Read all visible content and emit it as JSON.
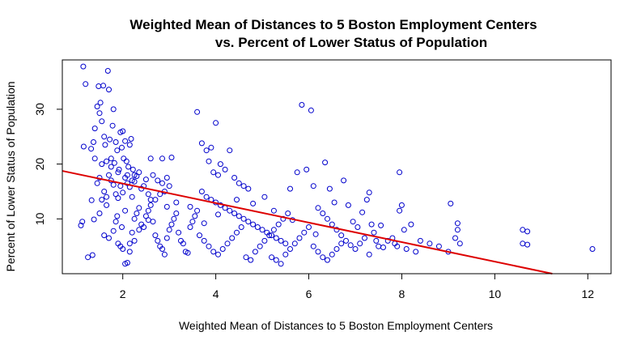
{
  "chart_data": {
    "type": "scatter",
    "title_line1": "Weighted Mean of Distances to 5 Boston Employment Centers",
    "title_line2": "vs. Percent of Lower Status of Population",
    "xlabel": "Weighted Mean of Distances to 5 Boston Employment Centers",
    "ylabel": "Percent of Lower Status of Population",
    "xlim": [
      0.7,
      12.5
    ],
    "ylim": [
      0.0,
      39.0
    ],
    "xticks": [
      2,
      4,
      6,
      8,
      10,
      12
    ],
    "yticks": [
      10,
      20,
      30
    ],
    "grid": false,
    "point_color": "#0000cc",
    "line_color": "#dd0000",
    "regression_line": {
      "intercept": 20.0,
      "slope": -1.78,
      "x_from": 0.7,
      "x_to": 12.5
    },
    "series": [
      {
        "points": [
          [
            1.15,
            37.8
          ],
          [
            1.2,
            34.6
          ],
          [
            1.16,
            23.2
          ],
          [
            1.13,
            9.5
          ],
          [
            1.1,
            8.8
          ],
          [
            1.25,
            3.0
          ],
          [
            1.35,
            3.4
          ],
          [
            1.38,
            9.9
          ],
          [
            1.33,
            13.4
          ],
          [
            1.32,
            22.8
          ],
          [
            1.37,
            24.0
          ],
          [
            1.4,
            26.5
          ],
          [
            1.45,
            30.5
          ],
          [
            1.48,
            34.2
          ],
          [
            1.5,
            29.3
          ],
          [
            1.52,
            31.2
          ],
          [
            1.55,
            27.8
          ],
          [
            1.58,
            34.3
          ],
          [
            1.6,
            25.0
          ],
          [
            1.62,
            23.5
          ],
          [
            1.65,
            20.5
          ],
          [
            1.68,
            37.0
          ],
          [
            1.7,
            33.6
          ],
          [
            1.72,
            24.5
          ],
          [
            1.75,
            21.0
          ],
          [
            1.78,
            27.0
          ],
          [
            1.8,
            30.0
          ],
          [
            1.82,
            20.2
          ],
          [
            1.85,
            24.0
          ],
          [
            1.88,
            22.5
          ],
          [
            1.9,
            18.5
          ],
          [
            1.92,
            19.0
          ],
          [
            1.95,
            25.8
          ],
          [
            1.98,
            23.0
          ],
          [
            2.0,
            26.0
          ],
          [
            2.02,
            21.0
          ],
          [
            2.05,
            24.2
          ],
          [
            2.08,
            20.5
          ],
          [
            2.1,
            18.0
          ],
          [
            2.12,
            19.5
          ],
          [
            2.15,
            23.5
          ],
          [
            2.18,
            24.6
          ],
          [
            2.2,
            17.0
          ],
          [
            2.22,
            19.0
          ],
          [
            2.25,
            18.0
          ],
          [
            1.45,
            16.5
          ],
          [
            1.5,
            17.5
          ],
          [
            1.55,
            13.5
          ],
          [
            1.6,
            15.0
          ],
          [
            1.65,
            14.0
          ],
          [
            1.7,
            18.0
          ],
          [
            1.75,
            17.0
          ],
          [
            1.8,
            16.2
          ],
          [
            1.85,
            14.5
          ],
          [
            1.9,
            13.8
          ],
          [
            1.95,
            16.0
          ],
          [
            2.0,
            14.8
          ],
          [
            2.05,
            17.5
          ],
          [
            2.1,
            16.5
          ],
          [
            2.15,
            15.8
          ],
          [
            2.2,
            14.0
          ],
          [
            2.25,
            16.8
          ],
          [
            2.3,
            17.8
          ],
          [
            2.35,
            18.5
          ],
          [
            2.4,
            15.5
          ],
          [
            2.45,
            16.0
          ],
          [
            2.5,
            17.2
          ],
          [
            2.55,
            14.5
          ],
          [
            2.6,
            13.5
          ],
          [
            1.4,
            21.0
          ],
          [
            1.55,
            20.0
          ],
          [
            1.75,
            19.5
          ],
          [
            1.65,
            12.5
          ],
          [
            1.5,
            11.0
          ],
          [
            1.85,
            9.5
          ],
          [
            1.6,
            7.0
          ],
          [
            1.7,
            6.5
          ],
          [
            1.8,
            7.8
          ],
          [
            1.9,
            5.5
          ],
          [
            1.95,
            5.0
          ],
          [
            2.0,
            4.5
          ],
          [
            2.05,
            1.8
          ],
          [
            2.1,
            2.0
          ],
          [
            2.15,
            4.0
          ],
          [
            2.2,
            7.5
          ],
          [
            2.25,
            10.0
          ],
          [
            2.3,
            11.0
          ],
          [
            2.35,
            12.0
          ],
          [
            2.4,
            9.0
          ],
          [
            2.45,
            8.5
          ],
          [
            2.5,
            10.5
          ],
          [
            2.55,
            11.5
          ],
          [
            2.6,
            12.5
          ],
          [
            2.65,
            9.5
          ],
          [
            2.7,
            7.0
          ],
          [
            2.75,
            6.0
          ],
          [
            2.8,
            5.0
          ],
          [
            2.85,
            4.5
          ],
          [
            2.9,
            3.5
          ],
          [
            2.95,
            6.5
          ],
          [
            3.0,
            8.0
          ],
          [
            3.05,
            9.0
          ],
          [
            3.1,
            10.0
          ],
          [
            3.15,
            11.0
          ],
          [
            3.2,
            7.5
          ],
          [
            3.25,
            6.0
          ],
          [
            3.3,
            5.5
          ],
          [
            3.35,
            4.0
          ],
          [
            3.4,
            3.8
          ],
          [
            3.45,
            8.5
          ],
          [
            3.5,
            9.5
          ],
          [
            3.55,
            10.5
          ],
          [
            3.6,
            11.5
          ],
          [
            2.7,
            13.5
          ],
          [
            2.8,
            14.5
          ],
          [
            2.9,
            15.0
          ],
          [
            3.0,
            16.0
          ],
          [
            2.65,
            18.0
          ],
          [
            2.75,
            17.0
          ],
          [
            2.85,
            16.5
          ],
          [
            2.95,
            17.5
          ],
          [
            2.6,
            21.0
          ],
          [
            2.85,
            21.0
          ],
          [
            3.05,
            21.2
          ],
          [
            3.6,
            29.5
          ],
          [
            3.7,
            23.8
          ],
          [
            3.8,
            22.5
          ],
          [
            3.9,
            23.0
          ],
          [
            4.0,
            27.5
          ],
          [
            3.85,
            20.5
          ],
          [
            3.95,
            18.5
          ],
          [
            4.05,
            18.0
          ],
          [
            4.1,
            20.0
          ],
          [
            4.2,
            19.0
          ],
          [
            4.3,
            22.5
          ],
          [
            4.4,
            17.5
          ],
          [
            4.5,
            16.5
          ],
          [
            4.6,
            16.0
          ],
          [
            4.7,
            15.5
          ],
          [
            3.7,
            15.0
          ],
          [
            3.8,
            14.0
          ],
          [
            3.9,
            13.5
          ],
          [
            4.0,
            13.0
          ],
          [
            4.1,
            12.5
          ],
          [
            4.2,
            12.0
          ],
          [
            4.3,
            11.5
          ],
          [
            4.4,
            11.0
          ],
          [
            4.5,
            10.5
          ],
          [
            4.6,
            10.0
          ],
          [
            4.7,
            9.5
          ],
          [
            4.8,
            9.0
          ],
          [
            4.9,
            8.5
          ],
          [
            5.0,
            8.0
          ],
          [
            5.1,
            7.5
          ],
          [
            5.2,
            7.0
          ],
          [
            5.3,
            6.5
          ],
          [
            5.4,
            6.0
          ],
          [
            5.5,
            5.5
          ],
          [
            3.65,
            7.0
          ],
          [
            3.75,
            6.0
          ],
          [
            3.85,
            5.0
          ],
          [
            3.95,
            4.0
          ],
          [
            4.05,
            3.5
          ],
          [
            4.15,
            4.5
          ],
          [
            4.25,
            5.5
          ],
          [
            4.35,
            6.5
          ],
          [
            4.45,
            7.5
          ],
          [
            4.55,
            8.5
          ],
          [
            4.65,
            3.0
          ],
          [
            4.75,
            2.5
          ],
          [
            4.85,
            4.0
          ],
          [
            4.95,
            5.0
          ],
          [
            5.05,
            6.0
          ],
          [
            5.15,
            7.0
          ],
          [
            5.25,
            8.0
          ],
          [
            5.35,
            9.0
          ],
          [
            5.45,
            10.0
          ],
          [
            5.55,
            11.0
          ],
          [
            5.05,
            14.0
          ],
          [
            5.2,
            3.0
          ],
          [
            5.3,
            2.5
          ],
          [
            5.4,
            1.8
          ],
          [
            5.5,
            3.5
          ],
          [
            5.6,
            4.5
          ],
          [
            5.7,
            5.5
          ],
          [
            5.8,
            6.5
          ],
          [
            5.9,
            7.5
          ],
          [
            6.0,
            8.5
          ],
          [
            5.6,
            15.5
          ],
          [
            5.75,
            18.5
          ],
          [
            5.85,
            30.8
          ],
          [
            6.05,
            29.8
          ],
          [
            5.95,
            19.0
          ],
          [
            6.1,
            16.0
          ],
          [
            6.2,
            12.0
          ],
          [
            6.3,
            11.0
          ],
          [
            6.4,
            10.0
          ],
          [
            6.5,
            9.0
          ],
          [
            6.6,
            8.0
          ],
          [
            6.7,
            7.0
          ],
          [
            6.8,
            6.0
          ],
          [
            6.1,
            5.0
          ],
          [
            6.2,
            4.0
          ],
          [
            6.3,
            3.0
          ],
          [
            6.4,
            2.5
          ],
          [
            6.5,
            3.5
          ],
          [
            6.6,
            4.5
          ],
          [
            6.7,
            5.5
          ],
          [
            6.35,
            20.3
          ],
          [
            6.45,
            15.5
          ],
          [
            6.55,
            13.0
          ],
          [
            6.75,
            17.0
          ],
          [
            6.85,
            12.5
          ],
          [
            6.95,
            9.5
          ],
          [
            7.05,
            8.5
          ],
          [
            7.15,
            11.2
          ],
          [
            7.25,
            13.5
          ],
          [
            7.3,
            14.8
          ],
          [
            7.35,
            9.0
          ],
          [
            7.4,
            7.5
          ],
          [
            7.45,
            6.0
          ],
          [
            7.5,
            5.0
          ],
          [
            7.0,
            4.5
          ],
          [
            7.1,
            5.5
          ],
          [
            7.2,
            6.5
          ],
          [
            7.3,
            3.5
          ],
          [
            7.8,
            6.5
          ],
          [
            7.85,
            5.5
          ],
          [
            7.9,
            5.0
          ],
          [
            7.95,
            18.5
          ],
          [
            8.0,
            12.5
          ],
          [
            7.95,
            11.5
          ],
          [
            8.05,
            8.0
          ],
          [
            8.2,
            9.0
          ],
          [
            8.4,
            6.0
          ],
          [
            8.6,
            5.5
          ],
          [
            8.8,
            5.0
          ],
          [
            9.0,
            4.0
          ],
          [
            9.2,
            9.2
          ],
          [
            9.2,
            8.0
          ],
          [
            9.15,
            6.5
          ],
          [
            9.25,
            5.5
          ],
          [
            9.05,
            12.8
          ],
          [
            10.6,
            8.0
          ],
          [
            10.6,
            5.5
          ],
          [
            10.7,
            7.7
          ],
          [
            10.7,
            5.3
          ],
          [
            12.1,
            4.5
          ],
          [
            8.3,
            4.0
          ],
          [
            7.6,
            4.8
          ],
          [
            7.7,
            6.0
          ],
          [
            8.1,
            4.5
          ],
          [
            7.55,
            8.8
          ],
          [
            6.9,
            5.2
          ],
          [
            6.15,
            7.2
          ],
          [
            5.65,
            9.8
          ],
          [
            5.25,
            11.5
          ],
          [
            4.8,
            12.8
          ],
          [
            4.45,
            13.5
          ],
          [
            4.05,
            10.8
          ],
          [
            3.75,
            9.2
          ],
          [
            3.45,
            12.2
          ],
          [
            3.15,
            13.0
          ],
          [
            2.95,
            12.2
          ],
          [
            2.55,
            9.8
          ],
          [
            2.35,
            8.0
          ],
          [
            2.25,
            6.0
          ],
          [
            2.15,
            5.5
          ],
          [
            2.05,
            11.5
          ],
          [
            1.98,
            8.5
          ],
          [
            1.88,
            10.5
          ]
        ]
      }
    ]
  }
}
